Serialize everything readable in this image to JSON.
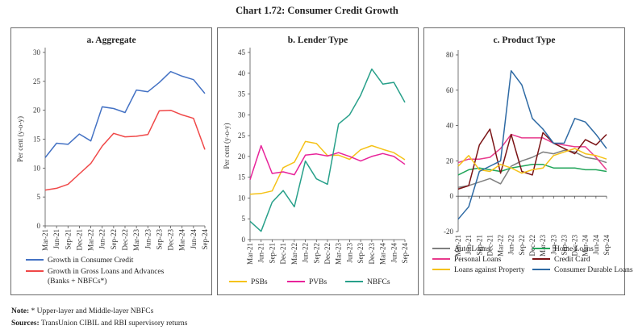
{
  "title": "Chart 1.72: Consumer Credit Growth",
  "note_label": "Note:",
  "note_text": "* Upper-layer and Middle-layer NBFCs",
  "sources_label": "Sources:",
  "sources_text": "TransUnion CIBIL and RBI supervisory returns",
  "chart_data": [
    {
      "type": "line",
      "title": "a. Aggregate",
      "ylabel": "Per cent (y-o-y)",
      "ylim": [
        0,
        30
      ],
      "yticks": [
        0,
        5,
        10,
        15,
        20,
        25,
        30
      ],
      "x": [
        "Mar-21",
        "Jun-21",
        "Sep-21",
        "Dec-21",
        "Mar-22",
        "Jun-22",
        "Sep-22",
        "Dec-22",
        "Mar-23",
        "Jun-23",
        "Sep-23",
        "Dec-23",
        "Mar-24",
        "Jun-24",
        "Sep-24"
      ],
      "legend": "bottom",
      "series": [
        {
          "name": "Growth in Consumer Credit",
          "color": "#4472c4",
          "values": [
            11.8,
            14.3,
            14.1,
            15.9,
            14.7,
            20.6,
            20.3,
            19.6,
            23.5,
            23.2,
            24.8,
            26.7,
            25.9,
            25.3,
            22.9
          ]
        },
        {
          "name": "Growth in Gross Loans and Advances",
          "name2": "(Banks + NBFCs*)",
          "color": "#f04848",
          "values": [
            6.2,
            6.5,
            7.2,
            9.0,
            10.8,
            13.8,
            16.0,
            15.4,
            15.5,
            15.8,
            19.9,
            20.0,
            19.2,
            18.6,
            13.2
          ]
        }
      ]
    },
    {
      "type": "line",
      "title": "b. Lender Type",
      "ylabel": "Per cent (y-o-y)",
      "ylim": [
        0,
        45
      ],
      "yticks": [
        0,
        5,
        10,
        15,
        20,
        25,
        30,
        35,
        40,
        45
      ],
      "x": [
        "Mar-21",
        "Jun-21",
        "Sep-21",
        "Dec-21",
        "Mar-22",
        "Jun-22",
        "Sep-22",
        "Dec-22",
        "Mar-23",
        "Jun-23",
        "Sep-23",
        "Dec-23",
        "Mar-24",
        "Jun-24",
        "Sep-24"
      ],
      "legend": "bottom",
      "series": [
        {
          "name": "PSBs",
          "color": "#f5c218",
          "values": [
            10.9,
            11.1,
            11.7,
            17.3,
            18.6,
            23.6,
            23.1,
            20.2,
            20.3,
            19.3,
            21.6,
            22.6,
            21.7,
            20.9,
            19.2
          ]
        },
        {
          "name": "PVBs",
          "color": "#e8239a",
          "values": [
            14.4,
            22.6,
            15.9,
            16.3,
            15.6,
            20.3,
            20.6,
            20.1,
            20.9,
            20.0,
            18.9,
            20.0,
            20.7,
            20.0,
            18.1
          ]
        },
        {
          "name": "NBFCs",
          "color": "#28a08a",
          "values": [
            4.4,
            2.0,
            9.0,
            11.8,
            7.9,
            18.9,
            14.6,
            13.3,
            27.8,
            30.0,
            34.7,
            41.0,
            37.4,
            37.8,
            33.0
          ]
        }
      ]
    },
    {
      "type": "line",
      "title": "c. Product Type",
      "ylabel": "",
      "ylim": [
        -20,
        80
      ],
      "yticks": [
        -20,
        0,
        20,
        40,
        60,
        80
      ],
      "x": [
        "Mar-21",
        "Jun-21",
        "Sep-21",
        "Dec-21",
        "Mar-22",
        "Jun-22",
        "Sep-22",
        "Dec-22",
        "Mar-23",
        "Jun-23",
        "Sep-23",
        "Dec-23",
        "Mar-24",
        "Jun-24",
        "Sep-24"
      ],
      "legend": "bottom",
      "series": [
        {
          "name": "Auto Loans",
          "color": "#7f7f7f",
          "values": [
            5,
            6,
            8,
            10,
            7,
            17,
            20,
            22,
            25,
            24,
            26,
            25,
            22,
            21,
            19
          ]
        },
        {
          "name": "Home Loans",
          "color": "#22a55a",
          "values": [
            12,
            15,
            16,
            15,
            14,
            16,
            17,
            18,
            18,
            16,
            16,
            16,
            15,
            15,
            14
          ]
        },
        {
          "name": "Personal Loans",
          "color": "#e83a8c",
          "values": [
            19,
            21,
            21,
            22,
            27,
            35,
            33,
            33,
            33,
            30,
            29,
            28,
            28,
            22,
            15
          ]
        },
        {
          "name": "Credit Card",
          "color": "#7b1416",
          "values": [
            4,
            6,
            29,
            38,
            13,
            35,
            14,
            12,
            36,
            30,
            27,
            24,
            32,
            29,
            35
          ]
        },
        {
          "name": "Loans against Property",
          "color": "#f5c218",
          "values": [
            17,
            23,
            15,
            14,
            18,
            16,
            13,
            15,
            16,
            23,
            25,
            27,
            24,
            23,
            21
          ]
        },
        {
          "name": "Consumer Durable Loans",
          "color": "#2e6aa4",
          "values": [
            -13,
            -6,
            14,
            17,
            20,
            71,
            63,
            44,
            38,
            30,
            30,
            44,
            42,
            35,
            27
          ]
        }
      ]
    }
  ]
}
